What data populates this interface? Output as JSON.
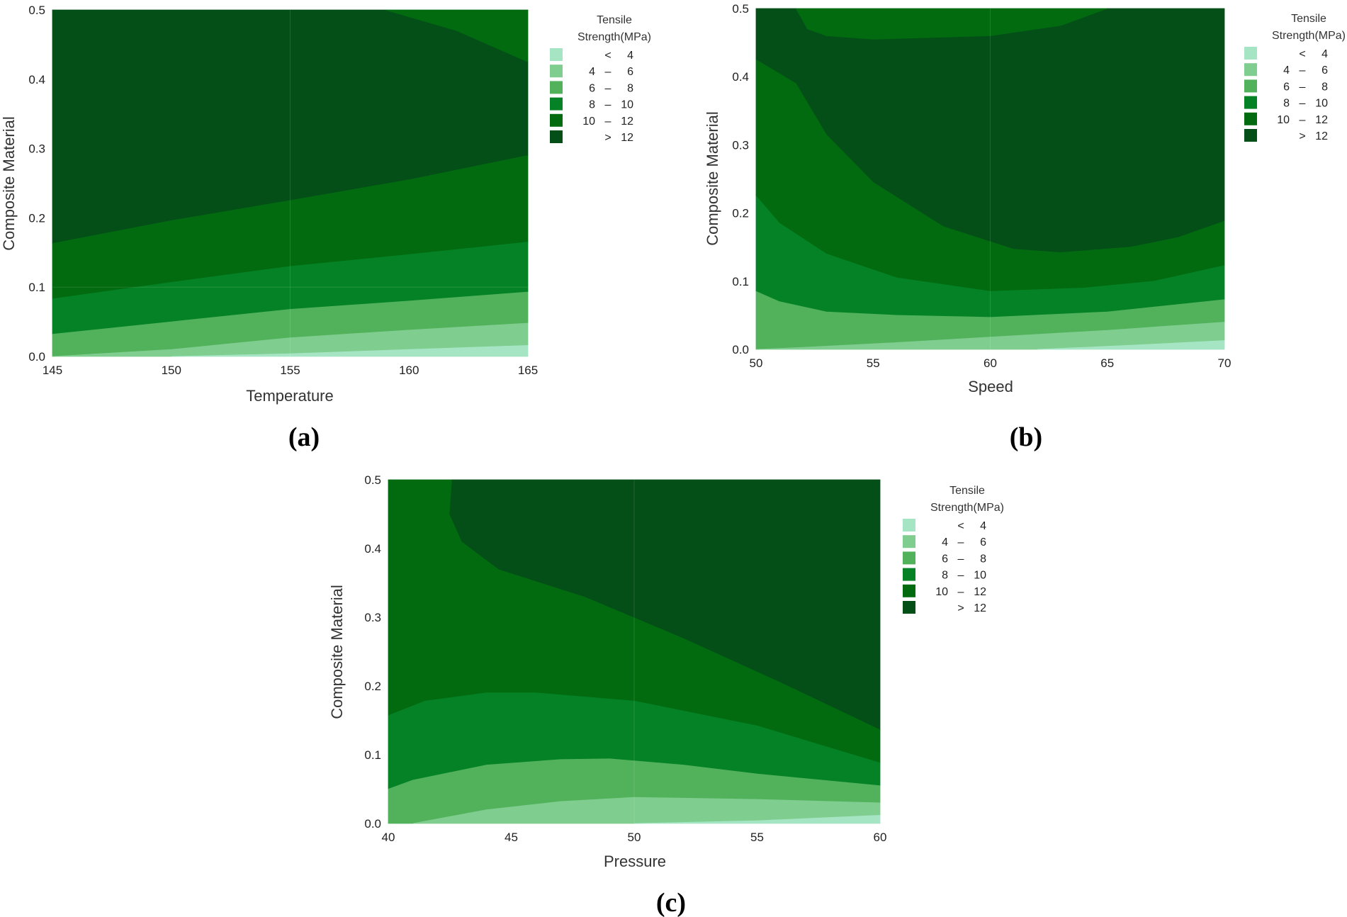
{
  "legend": {
    "title_line1": "Tensile",
    "title_line2": "Strength(MPa)",
    "levels": [
      {
        "lo": "",
        "sep": "<",
        "hi": "4",
        "color": "#a5e5c4"
      },
      {
        "lo": "4",
        "sep": "–",
        "hi": "6",
        "color": "#7fcd8f"
      },
      {
        "lo": "6",
        "sep": "–",
        "hi": "8",
        "color": "#52b25c"
      },
      {
        "lo": "8",
        "sep": "–",
        "hi": "10",
        "color": "#068226"
      },
      {
        "lo": "10",
        "sep": "–",
        "hi": "12",
        "color": "#026b10"
      },
      {
        "lo": "",
        "sep": ">",
        "hi": "12",
        "color": "#044e18"
      }
    ]
  },
  "chart_data": [
    {
      "type": "contour",
      "panel_label": "(a)",
      "title": "",
      "xlabel": "Temperature",
      "ylabel": "Composite Material",
      "xlim": [
        145,
        165
      ],
      "ylim": [
        0.0,
        0.5
      ],
      "xticks": [
        "145",
        "150",
        "155",
        "160",
        "165"
      ],
      "yticks": [
        "0.0",
        "0.1",
        "0.2",
        "0.3",
        "0.4",
        "0.5"
      ],
      "contour_boundaries": [
        {
          "between": "<4 | 4-6",
          "x": [
            150,
            155,
            160,
            165
          ],
          "y": [
            0.0,
            0.004,
            0.01,
            0.016
          ]
        },
        {
          "between": "4-6 | 6-8",
          "x": [
            145,
            150,
            155,
            160,
            165
          ],
          "y": [
            0.0,
            0.01,
            0.027,
            0.038,
            0.048
          ]
        },
        {
          "between": "6-8 | 8-10",
          "x": [
            145,
            150,
            155,
            160,
            165
          ],
          "y": [
            0.032,
            0.05,
            0.068,
            0.08,
            0.093
          ]
        },
        {
          "between": "8-10 | 10-12",
          "x": [
            145,
            150,
            155,
            160,
            165
          ],
          "y": [
            0.083,
            0.107,
            0.13,
            0.147,
            0.165
          ]
        },
        {
          "between": "10-12 | >12 (lower)",
          "x": [
            145,
            150,
            155,
            160,
            165
          ],
          "y": [
            0.163,
            0.196,
            0.225,
            0.255,
            0.29
          ]
        },
        {
          "between": ">12 | 10-12 (upper corner)",
          "x": [
            159,
            162,
            165
          ],
          "y": [
            0.5,
            0.47,
            0.425
          ]
        }
      ]
    },
    {
      "type": "contour",
      "panel_label": "(b)",
      "title": "",
      "xlabel": "Speed",
      "ylabel": "Composite Material",
      "xlim": [
        50,
        70
      ],
      "ylim": [
        0.0,
        0.5
      ],
      "xticks": [
        "50",
        "55",
        "60",
        "65",
        "70"
      ],
      "yticks": [
        "0.0",
        "0.1",
        "0.2",
        "0.3",
        "0.4",
        "0.5"
      ],
      "contour_boundaries": [
        {
          "between": "<4 | 4-6",
          "x": [
            62,
            66,
            70
          ],
          "y": [
            0.0,
            0.006,
            0.013
          ]
        },
        {
          "between": "4-6 | 6-8",
          "x": [
            50,
            52,
            56,
            60,
            65,
            70
          ],
          "y": [
            0.0,
            0.003,
            0.01,
            0.018,
            0.028,
            0.04
          ]
        },
        {
          "between": "6-8 | 8-10",
          "x": [
            50,
            51,
            53,
            56,
            60,
            65,
            70
          ],
          "y": [
            0.085,
            0.07,
            0.055,
            0.05,
            0.047,
            0.055,
            0.073
          ]
        },
        {
          "between": "8-10 | 10-12",
          "x": [
            50,
            51,
            53,
            56,
            60,
            64,
            67,
            70
          ],
          "y": [
            0.225,
            0.185,
            0.14,
            0.105,
            0.085,
            0.09,
            0.1,
            0.123
          ]
        },
        {
          "between": "10-12 | >12 (lower)",
          "x": [
            50,
            51.7,
            53,
            55,
            58,
            61,
            63,
            66,
            68,
            70
          ],
          "y": [
            0.425,
            0.39,
            0.315,
            0.245,
            0.18,
            0.147,
            0.142,
            0.15,
            0.164,
            0.188
          ]
        },
        {
          "between": ">12 | 10-12 (top band)",
          "x": [
            51.7,
            52.2,
            53,
            55,
            60,
            63,
            65
          ],
          "y": [
            0.5,
            0.47,
            0.46,
            0.455,
            0.46,
            0.475,
            0.5
          ]
        }
      ]
    },
    {
      "type": "contour",
      "panel_label": "(c)",
      "title": "",
      "xlabel": "Pressure",
      "ylabel": "Composite Material",
      "xlim": [
        40,
        60
      ],
      "ylim": [
        0.0,
        0.5
      ],
      "xticks": [
        "40",
        "45",
        "50",
        "55",
        "60"
      ],
      "yticks": [
        "0.0",
        "0.1",
        "0.2",
        "0.3",
        "0.4",
        "0.5"
      ],
      "contour_boundaries": [
        {
          "between": "<4 | 4-6",
          "x": [
            50,
            55,
            60
          ],
          "y": [
            0.0,
            0.004,
            0.012
          ]
        },
        {
          "between": "4-6 | 6-8",
          "x": [
            41,
            44,
            47,
            50,
            55,
            60
          ],
          "y": [
            0.0,
            0.02,
            0.032,
            0.038,
            0.035,
            0.03
          ]
        },
        {
          "between": "6-8 | 8-10",
          "x": [
            40,
            41,
            44,
            47,
            49,
            52,
            55,
            60
          ],
          "y": [
            0.05,
            0.063,
            0.085,
            0.093,
            0.094,
            0.085,
            0.072,
            0.055
          ]
        },
        {
          "between": "8-10 | 10-12",
          "x": [
            40,
            41.5,
            44,
            46,
            50,
            55,
            60
          ],
          "y": [
            0.157,
            0.178,
            0.19,
            0.19,
            0.178,
            0.142,
            0.088
          ]
        },
        {
          "between": "10-12 | >12",
          "x": [
            42.6,
            42.5,
            43,
            44.5,
            48,
            52,
            56,
            60
          ],
          "y": [
            0.5,
            0.45,
            0.41,
            0.37,
            0.33,
            0.27,
            0.205,
            0.137
          ]
        }
      ]
    }
  ]
}
